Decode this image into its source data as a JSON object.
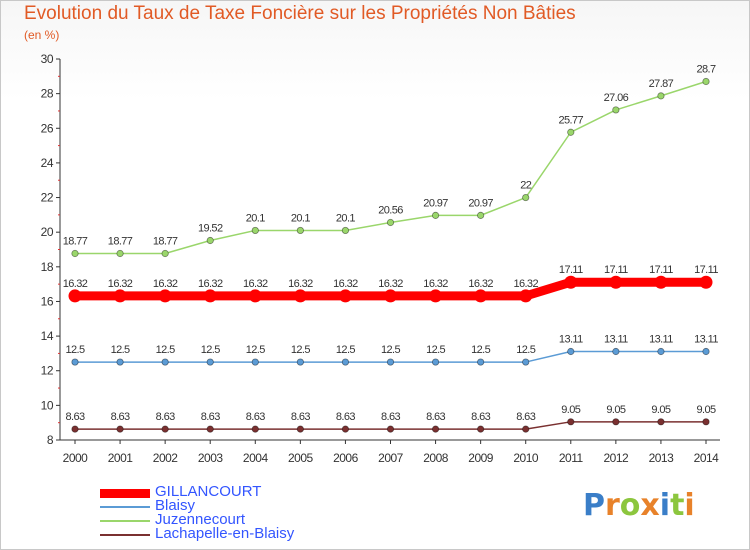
{
  "title": "Evolution du Taux de Taxe Foncière sur les Propriétés Non Bâties",
  "unit_label": "(en %)",
  "logo": {
    "letters": [
      "P",
      "r",
      "o",
      "x",
      "i",
      "t",
      "i"
    ],
    "colors": [
      "#3a7ec8",
      "#e8822a",
      "#8cc63e",
      "#e8822a",
      "#3a7ec8",
      "#8cc63e",
      "#e8822a"
    ]
  },
  "chart_data": {
    "type": "line",
    "title": "Evolution du Taux de Taxe Foncière sur les Propriétés Non Bâties",
    "ylabel": "(en %)",
    "xlabel": "",
    "x": [
      "2000",
      "2001",
      "2002",
      "2003",
      "2004",
      "2005",
      "2006",
      "2007",
      "2008",
      "2009",
      "2010",
      "2011",
      "2012",
      "2013",
      "2014"
    ],
    "ylim": [
      8,
      30
    ],
    "yticks": [
      8,
      10,
      12,
      14,
      16,
      18,
      20,
      22,
      24,
      26,
      28,
      30
    ],
    "grid": false,
    "legend_position": "bottom-left",
    "series": [
      {
        "name": "GILLANCOURT",
        "color": "#ff0000",
        "highlight": true,
        "values": [
          16.32,
          16.32,
          16.32,
          16.32,
          16.32,
          16.32,
          16.32,
          16.32,
          16.32,
          16.32,
          16.32,
          17.11,
          17.11,
          17.11,
          17.11
        ],
        "labels": [
          "16.32",
          "16.32",
          "16.32",
          "16.32",
          "16.32",
          "16.32",
          "16.32",
          "16.32",
          "16.32",
          "16.32",
          "16.32",
          "17.11",
          "17.11",
          "17.11",
          "17.11"
        ]
      },
      {
        "name": "Blaisy",
        "color": "#5b9bd5",
        "highlight": false,
        "values": [
          12.5,
          12.5,
          12.5,
          12.5,
          12.5,
          12.5,
          12.5,
          12.5,
          12.5,
          12.5,
          12.5,
          13.11,
          13.11,
          13.11,
          13.11
        ],
        "labels": [
          "12.5",
          "12.5",
          "12.5",
          "12.5",
          "12.5",
          "12.5",
          "12.5",
          "12.5",
          "12.5",
          "12.5",
          "12.5",
          "13.11",
          "13.11",
          "13.11",
          "13.11"
        ]
      },
      {
        "name": "Juzennecourt",
        "color": "#9ad66b",
        "highlight": false,
        "values": [
          18.77,
          18.77,
          18.77,
          19.52,
          20.1,
          20.1,
          20.1,
          20.56,
          20.97,
          20.97,
          22,
          25.77,
          27.06,
          27.87,
          28.7
        ],
        "labels": [
          "18.77",
          "18.77",
          "18.77",
          "19.52",
          "20.1",
          "20.1",
          "20.1",
          "20.56",
          "20.97",
          "20.97",
          "22",
          "25.77",
          "27.06",
          "27.87",
          "28.7"
        ]
      },
      {
        "name": "Lachapelle-en-Blaisy",
        "color": "#7a3030",
        "highlight": false,
        "values": [
          8.63,
          8.63,
          8.63,
          8.63,
          8.63,
          8.63,
          8.63,
          8.63,
          8.63,
          8.63,
          8.63,
          9.05,
          9.05,
          9.05,
          9.05
        ],
        "labels": [
          "8.63",
          "8.63",
          "8.63",
          "8.63",
          "8.63",
          "8.63",
          "8.63",
          "8.63",
          "8.63",
          "8.63",
          "8.63",
          "9.05",
          "9.05",
          "9.05",
          "9.05"
        ]
      }
    ]
  }
}
